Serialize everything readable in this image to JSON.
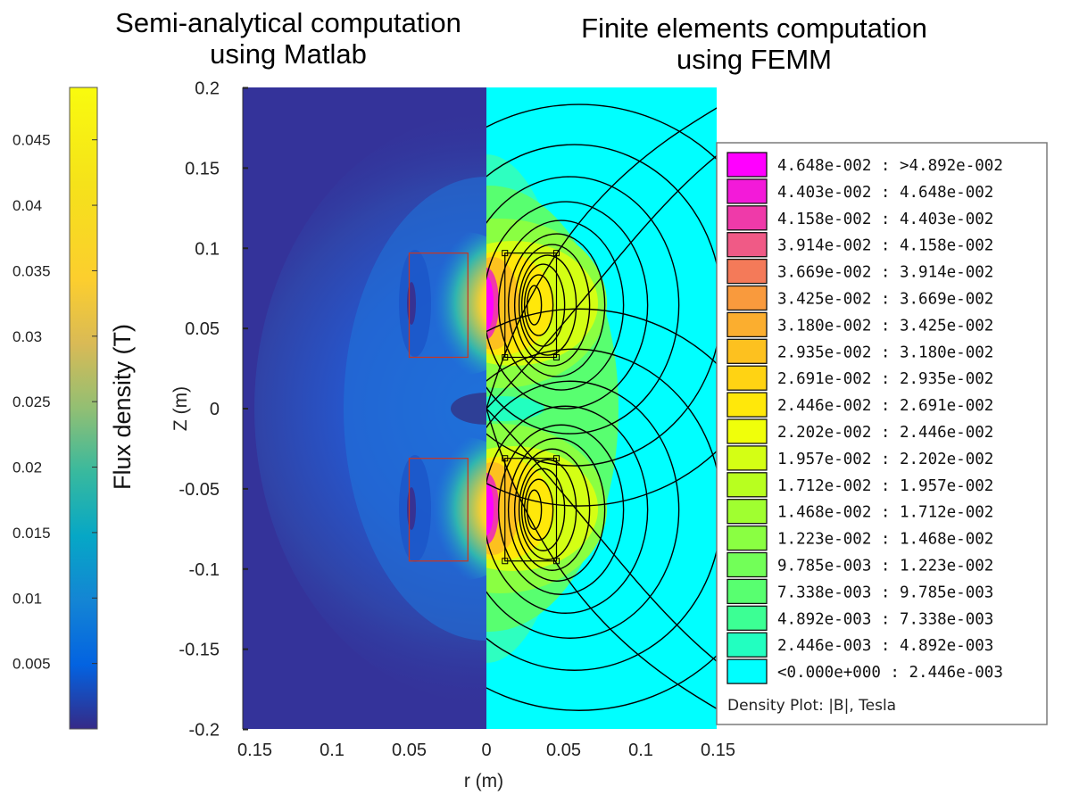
{
  "titles": {
    "left": "Semi-analytical computation\nusing Matlab",
    "right": "Finite elements computation\nusing FEMM"
  },
  "chart_data": [
    {
      "type": "heatmap",
      "subtitle": "Semi-analytical computation using Matlab",
      "xlabel": "r (m)",
      "ylabel": "Z (m)",
      "colorbar_label": "Flux density (T)",
      "colormap": "parula",
      "xlim": [
        0,
        0.16
      ],
      "ylim": [
        -0.2,
        0.2
      ],
      "x_axis_reversed": true,
      "xticks": [
        0.15,
        0.1,
        0.05,
        0
      ],
      "xtick_labels": [
        "0.15",
        "0.1",
        "0.05",
        "0"
      ],
      "yticks": [
        0.2,
        0.15,
        0.1,
        0.05,
        0,
        -0.05,
        -0.1,
        -0.15,
        -0.2
      ],
      "ytick_labels": [
        "0.2",
        "0.15",
        "0.1",
        "0.05",
        "0",
        "-0.05",
        "-0.1",
        "-0.15",
        "-0.2"
      ],
      "colorbar_ticks": [
        0.005,
        0.01,
        0.015,
        0.02,
        0.025,
        0.03,
        0.035,
        0.04,
        0.045
      ],
      "colorbar_tick_labels": [
        "0.005",
        "0.01",
        "0.015",
        "0.02",
        "0.025",
        "0.03",
        "0.035",
        "0.04",
        "0.045"
      ],
      "colorbar_range": [
        0,
        0.049
      ],
      "coils": [
        {
          "r_inner": 0.012,
          "r_outer": 0.05,
          "z_bottom": 0.032,
          "z_top": 0.097
        },
        {
          "r_inner": 0.012,
          "r_outer": 0.05,
          "z_bottom": -0.095,
          "z_top": -0.031
        }
      ]
    },
    {
      "type": "heatmap",
      "subtitle": "Finite elements computation using FEMM",
      "xlim": [
        0,
        0.16
      ],
      "ylim": [
        -0.2,
        0.2
      ],
      "xticks": [
        0,
        0.05,
        0.1,
        0.15
      ],
      "xtick_labels": [
        "0",
        "0.05",
        "0.1",
        "0.15"
      ],
      "legend_title": "Density Plot: |B|, Tesla",
      "legend_entries": [
        {
          "label": "4.648e-002 : >4.892e-002",
          "color": "#ff00ff"
        },
        {
          "label": "4.403e-002 : 4.648e-002",
          "color": "#f31ad9"
        },
        {
          "label": "4.158e-002 : 4.403e-002",
          "color": "#ef3aa9"
        },
        {
          "label": "3.914e-002 : 4.158e-002",
          "color": "#f05a86"
        },
        {
          "label": "3.669e-002 : 3.914e-002",
          "color": "#f47a59"
        },
        {
          "label": "3.425e-002 : 3.669e-002",
          "color": "#f99a3d"
        },
        {
          "label": "3.180e-002 : 3.425e-002",
          "color": "#fbae2f"
        },
        {
          "label": "2.935e-002 : 3.180e-002",
          "color": "#fdc11f"
        },
        {
          "label": "2.691e-002 : 2.935e-002",
          "color": "#ffd313"
        },
        {
          "label": "2.446e-002 : 2.691e-002",
          "color": "#ffe80a"
        },
        {
          "label": "2.202e-002 : 2.446e-002",
          "color": "#f0ff0a"
        },
        {
          "label": "1.957e-002 : 2.202e-002",
          "color": "#d4ff14"
        },
        {
          "label": "1.712e-002 : 1.957e-002",
          "color": "#b8ff1f"
        },
        {
          "label": "1.468e-002 : 1.712e-002",
          "color": "#a0ff30"
        },
        {
          "label": "1.223e-002 : 1.468e-002",
          "color": "#8aff42"
        },
        {
          "label": "9.785e-003 : 1.223e-002",
          "color": "#72ff58"
        },
        {
          "label": "7.338e-003 : 9.785e-003",
          "color": "#58ff70"
        },
        {
          "label": "4.892e-003 : 7.338e-003",
          "color": "#3cff94"
        },
        {
          "label": "2.446e-003 : 4.892e-003",
          "color": "#22ffc0"
        },
        {
          "label": "<0.000e+000 : 2.446e-003",
          "color": "#00ffff"
        }
      ]
    }
  ]
}
